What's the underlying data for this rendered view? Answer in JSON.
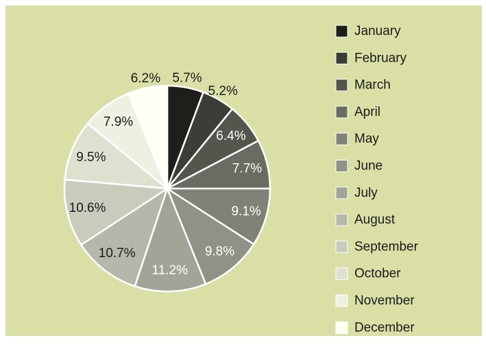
{
  "chart_data": {
    "type": "pie",
    "categories": [
      "January",
      "February",
      "March",
      "April",
      "May",
      "June",
      "July",
      "August",
      "September",
      "October",
      "November",
      "December"
    ],
    "values": [
      5.7,
      5.2,
      6.4,
      7.7,
      9.1,
      9.8,
      11.2,
      10.7,
      10.6,
      9.5,
      7.9,
      6.2
    ],
    "value_labels": [
      "5.7%",
      "5.2%",
      "6.4%",
      "7.7%",
      "9.1%",
      "9.8%",
      "11.2%",
      "10.7%",
      "10.6%",
      "9.5%",
      "7.9%",
      "6.2%"
    ],
    "colors": [
      "#1f1e1a",
      "#3d3d37",
      "#55554d",
      "#6b6b62",
      "#818178",
      "#919187",
      "#a3a398",
      "#b6b6aa",
      "#cbcbbd",
      "#e0e0d0",
      "#f0f0e2",
      "#fffff6"
    ],
    "legend": "right"
  }
}
